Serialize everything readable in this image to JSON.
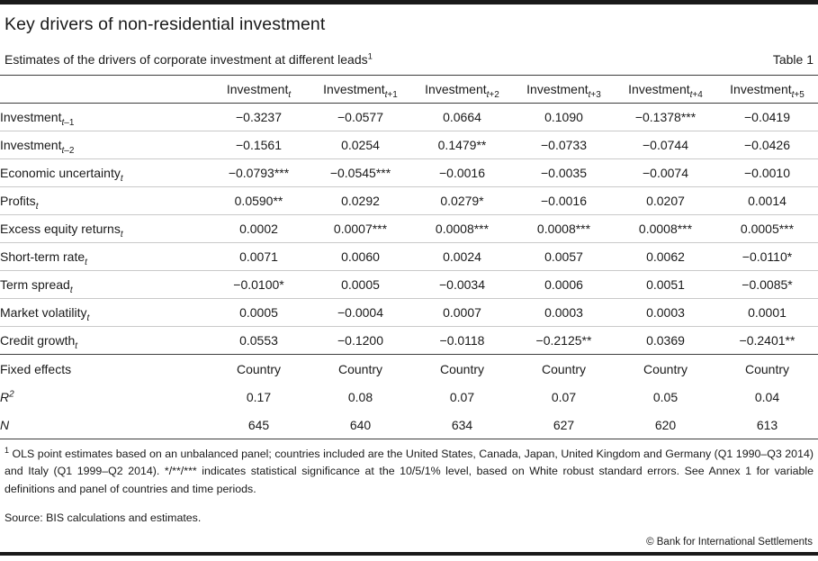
{
  "page": {
    "title": "Key drivers of non-residential investment",
    "subtitle": "Estimates of the drivers of corporate investment at different leads",
    "subtitle_footnote_marker": "1",
    "table_label": "Table 1"
  },
  "table": {
    "columns": [
      {
        "base": "Investment",
        "sub": "t"
      },
      {
        "base": "Investment",
        "sub": "t+1"
      },
      {
        "base": "Investment",
        "sub": "t+2"
      },
      {
        "base": "Investment",
        "sub": "t+3"
      },
      {
        "base": "Investment",
        "sub": "t+4"
      },
      {
        "base": "Investment",
        "sub": "t+5"
      }
    ],
    "rows": [
      {
        "label": {
          "base": "Investment",
          "sub": "t–1"
        },
        "values": [
          "−0.3237",
          "−0.0577",
          "0.0664",
          "0.1090",
          "−0.1378***",
          "−0.0419"
        ]
      },
      {
        "label": {
          "base": "Investment",
          "sub": "t–2"
        },
        "values": [
          "−0.1561",
          "0.0254",
          "0.1479**",
          "−0.0733",
          "−0.0744",
          "−0.0426"
        ]
      },
      {
        "label": {
          "base": "Economic uncertainty",
          "sub": "t"
        },
        "values": [
          "−0.0793***",
          "−0.0545***",
          "−0.0016",
          "−0.0035",
          "−0.0074",
          "−0.0010"
        ]
      },
      {
        "label": {
          "base": "Profits",
          "sub": "t"
        },
        "values": [
          "0.0590**",
          "0.0292",
          "0.0279*",
          "−0.0016",
          "0.0207",
          "0.0014"
        ]
      },
      {
        "label": {
          "base": "Excess equity returns",
          "sub": "t"
        },
        "values": [
          "0.0002",
          "0.0007***",
          "0.0008***",
          "0.0008***",
          "0.0008***",
          "0.0005***"
        ]
      },
      {
        "label": {
          "base": "Short-term rate",
          "sub": "t"
        },
        "values": [
          "0.0071",
          "0.0060",
          "0.0024",
          "0.0057",
          "0.0062",
          "−0.0110*"
        ]
      },
      {
        "label": {
          "base": "Term spread",
          "sub": "t"
        },
        "values": [
          "−0.0100*",
          "0.0005",
          "−0.0034",
          "0.0006",
          "0.0051",
          "−0.0085*"
        ]
      },
      {
        "label": {
          "base": "Market volatility",
          "sub": "t"
        },
        "values": [
          "0.0005",
          "−0.0004",
          "0.0007",
          "0.0003",
          "0.0003",
          "0.0001"
        ]
      },
      {
        "label": {
          "base": "Credit growth",
          "sub": "t"
        },
        "values": [
          "0.0553",
          "−0.1200",
          "−0.0118",
          "−0.2125**",
          "0.0369",
          "−0.2401**"
        ]
      }
    ],
    "stats_rows": [
      {
        "label": {
          "base": "Fixed effects"
        },
        "values": [
          "Country",
          "Country",
          "Country",
          "Country",
          "Country",
          "Country"
        ]
      },
      {
        "label": {
          "base": "R",
          "italic": true,
          "sup": "2"
        },
        "values": [
          "0.17",
          "0.08",
          "0.07",
          "0.07",
          "0.05",
          "0.04"
        ]
      },
      {
        "label": {
          "base": "N",
          "italic": true
        },
        "values": [
          "645",
          "640",
          "634",
          "627",
          "620",
          "613"
        ]
      }
    ]
  },
  "footnote": {
    "marker": "1",
    "text": "OLS point estimates based on an unbalanced panel; countries included are the United States, Canada, Japan, United Kingdom and Germany (Q1 1990–Q3 2014) and Italy (Q1 1999–Q2 2014). */**/*** indicates statistical significance at the 10/5/1% level, based on White robust standard errors. See Annex 1 for variable definitions and panel of countries and time periods."
  },
  "source": "Source: BIS calculations and estimates.",
  "copyright": "© Bank for International Settlements",
  "colors": {
    "text": "#1a1a1a",
    "rule_dark": "#3d3d3d",
    "rule_light": "#c9c9c9",
    "bar": "#1a1a1a"
  },
  "chart_data": {
    "type": "table",
    "title": "Key drivers of non-residential investment — Estimates of the drivers of corporate investment at different leads (Table 1)",
    "columns": [
      "",
      "Investment_t",
      "Investment_t+1",
      "Investment_t+2",
      "Investment_t+3",
      "Investment_t+4",
      "Investment_t+5"
    ],
    "rows": [
      [
        "Investment_t-1",
        "−0.3237",
        "−0.0577",
        "0.0664",
        "0.1090",
        "−0.1378***",
        "−0.0419"
      ],
      [
        "Investment_t-2",
        "−0.1561",
        "0.0254",
        "0.1479**",
        "−0.0733",
        "−0.0744",
        "−0.0426"
      ],
      [
        "Economic uncertainty_t",
        "−0.0793***",
        "−0.0545***",
        "−0.0016",
        "−0.0035",
        "−0.0074",
        "−0.0010"
      ],
      [
        "Profits_t",
        "0.0590**",
        "0.0292",
        "0.0279*",
        "−0.0016",
        "0.0207",
        "0.0014"
      ],
      [
        "Excess equity returns_t",
        "0.0002",
        "0.0007***",
        "0.0008***",
        "0.0008***",
        "0.0008***",
        "0.0005***"
      ],
      [
        "Short-term rate_t",
        "0.0071",
        "0.0060",
        "0.0024",
        "0.0057",
        "0.0062",
        "−0.0110*"
      ],
      [
        "Term spread_t",
        "−0.0100*",
        "0.0005",
        "−0.0034",
        "0.0006",
        "0.0051",
        "−0.0085*"
      ],
      [
        "Market volatility_t",
        "0.0005",
        "−0.0004",
        "0.0007",
        "0.0003",
        "0.0003",
        "0.0001"
      ],
      [
        "Credit growth_t",
        "0.0553",
        "−0.1200",
        "−0.0118",
        "−0.2125**",
        "0.0369",
        "−0.2401**"
      ],
      [
        "Fixed effects",
        "Country",
        "Country",
        "Country",
        "Country",
        "Country",
        "Country"
      ],
      [
        "R^2",
        "0.17",
        "0.08",
        "0.07",
        "0.07",
        "0.05",
        "0.04"
      ],
      [
        "N",
        "645",
        "640",
        "634",
        "627",
        "620",
        "613"
      ]
    ]
  }
}
